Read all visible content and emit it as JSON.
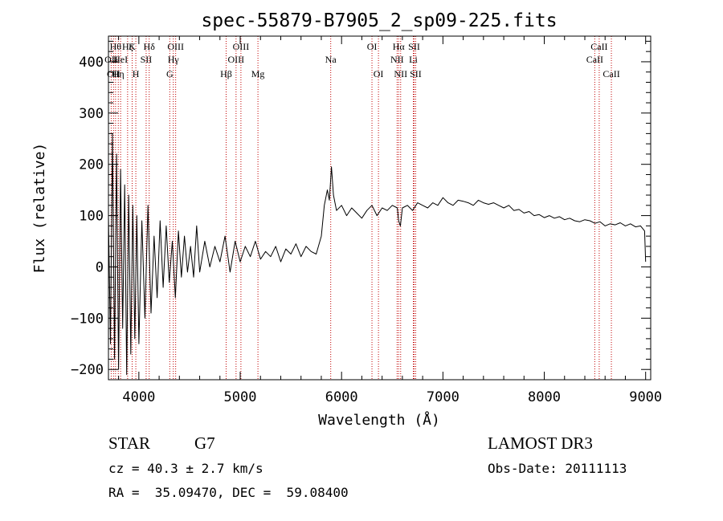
{
  "chart_data": {
    "type": "line",
    "title": "spec-55879-B7905_2_sp09-225.fits",
    "xlabel": "Wavelength (Å)",
    "ylabel": "Flux (relative)",
    "xlim": [
      3700,
      9050
    ],
    "ylim": [
      -220,
      450
    ],
    "xticks": [
      4000,
      5000,
      6000,
      7000,
      8000,
      9000
    ],
    "yticks": [
      -200,
      -100,
      0,
      100,
      200,
      300,
      400
    ],
    "colors": {
      "spectrum": "#000000",
      "lines": "#c00000",
      "axes": "#000000"
    },
    "spectrum": {
      "x": [
        3700,
        3720,
        3740,
        3760,
        3780,
        3800,
        3820,
        3840,
        3860,
        3880,
        3900,
        3920,
        3940,
        3960,
        3980,
        4000,
        4030,
        4060,
        4090,
        4120,
        4150,
        4180,
        4210,
        4240,
        4270,
        4300,
        4330,
        4360,
        4390,
        4420,
        4450,
        4480,
        4510,
        4540,
        4570,
        4600,
        4650,
        4700,
        4750,
        4800,
        4850,
        4900,
        4950,
        5000,
        5050,
        5100,
        5150,
        5200,
        5250,
        5300,
        5350,
        5400,
        5450,
        5500,
        5550,
        5600,
        5650,
        5700,
        5750,
        5800,
        5830,
        5860,
        5880,
        5900,
        5920,
        5950,
        6000,
        6050,
        6100,
        6150,
        6200,
        6250,
        6300,
        6350,
        6400,
        6450,
        6500,
        6550,
        6563,
        6580,
        6600,
        6650,
        6700,
        6750,
        6800,
        6850,
        6900,
        6950,
        7000,
        7050,
        7100,
        7150,
        7200,
        7250,
        7300,
        7350,
        7400,
        7450,
        7500,
        7550,
        7600,
        7650,
        7700,
        7750,
        7800,
        7850,
        7900,
        7950,
        8000,
        8050,
        8100,
        8150,
        8200,
        8250,
        8300,
        8350,
        8400,
        8450,
        8500,
        8550,
        8600,
        8650,
        8700,
        8750,
        8800,
        8850,
        8900,
        8950,
        8990,
        9000
      ],
      "y": [
        100,
        -150,
        260,
        -180,
        220,
        -200,
        190,
        -120,
        160,
        -210,
        140,
        -170,
        120,
        -140,
        100,
        -150,
        90,
        -100,
        120,
        -90,
        60,
        -60,
        90,
        -40,
        80,
        -30,
        50,
        -60,
        70,
        -20,
        60,
        -10,
        40,
        -20,
        80,
        -10,
        50,
        0,
        40,
        10,
        60,
        -10,
        50,
        10,
        40,
        20,
        50,
        15,
        30,
        20,
        40,
        10,
        35,
        25,
        45,
        20,
        40,
        30,
        25,
        60,
        120,
        150,
        130,
        195,
        140,
        110,
        120,
        100,
        115,
        105,
        95,
        110,
        120,
        100,
        115,
        110,
        120,
        115,
        90,
        80,
        115,
        120,
        110,
        125,
        120,
        115,
        125,
        120,
        135,
        125,
        120,
        130,
        128,
        125,
        120,
        130,
        125,
        122,
        125,
        120,
        115,
        120,
        110,
        112,
        105,
        108,
        100,
        102,
        96,
        100,
        95,
        98,
        92,
        95,
        90,
        88,
        92,
        90,
        85,
        88,
        80,
        84,
        82,
        86,
        80,
        84,
        78,
        80,
        70,
        10
      ]
    },
    "lines": [
      {
        "wl": 3727,
        "label": "OII",
        "tier": 2
      },
      {
        "wl": 3750,
        "label": "OII",
        "tier": 3
      },
      {
        "wl": 3770,
        "label": "Hθ",
        "tier": 1
      },
      {
        "wl": 3797,
        "label": "Hη",
        "tier": 3
      },
      {
        "wl": 3820,
        "label": "HeI",
        "tier": 2
      },
      {
        "wl": 3889,
        "label": "Hζ",
        "tier": 1
      },
      {
        "wl": 3934,
        "label": "K",
        "tier": 1
      },
      {
        "wl": 3970,
        "label": "H",
        "tier": 3
      },
      {
        "wl": 4072,
        "label": "SII",
        "tier": 2
      },
      {
        "wl": 4102,
        "label": "Hδ",
        "tier": 1
      },
      {
        "wl": 4305,
        "label": "G",
        "tier": 3
      },
      {
        "wl": 4340,
        "label": "Hγ",
        "tier": 2
      },
      {
        "wl": 4363,
        "label": "OIII",
        "tier": 1
      },
      {
        "wl": 4861,
        "label": "Hβ",
        "tier": 3
      },
      {
        "wl": 4959,
        "label": "OIII",
        "tier": 2
      },
      {
        "wl": 5007,
        "label": "OIII",
        "tier": 1
      },
      {
        "wl": 5175,
        "label": "Mg",
        "tier": 3
      },
      {
        "wl": 5893,
        "label": "Na",
        "tier": 2
      },
      {
        "wl": 6300,
        "label": "OI",
        "tier": 1
      },
      {
        "wl": 6364,
        "label": "OI",
        "tier": 3
      },
      {
        "wl": 6548,
        "label": "NII",
        "tier": 2
      },
      {
        "wl": 6563,
        "label": "Hα",
        "tier": 1
      },
      {
        "wl": 6583,
        "label": "NII",
        "tier": 3
      },
      {
        "wl": 6708,
        "label": "Li",
        "tier": 2
      },
      {
        "wl": 6716,
        "label": "SII",
        "tier": 1
      },
      {
        "wl": 6731,
        "label": "SII",
        "tier": 3
      },
      {
        "wl": 8498,
        "label": "CaII",
        "tier": 2
      },
      {
        "wl": 8542,
        "label": "CaII",
        "tier": 1
      },
      {
        "wl": 8662,
        "label": "CaII",
        "tier": 3
      }
    ]
  },
  "info": {
    "object_class": "STAR",
    "subclass": "G7",
    "survey": "LAMOST DR3",
    "redshift": "cz = 40.3 ± 2.7 km/s",
    "obs_date": "Obs-Date: 20111113",
    "coords": "RA =  35.09470, DEC =  59.08400"
  }
}
